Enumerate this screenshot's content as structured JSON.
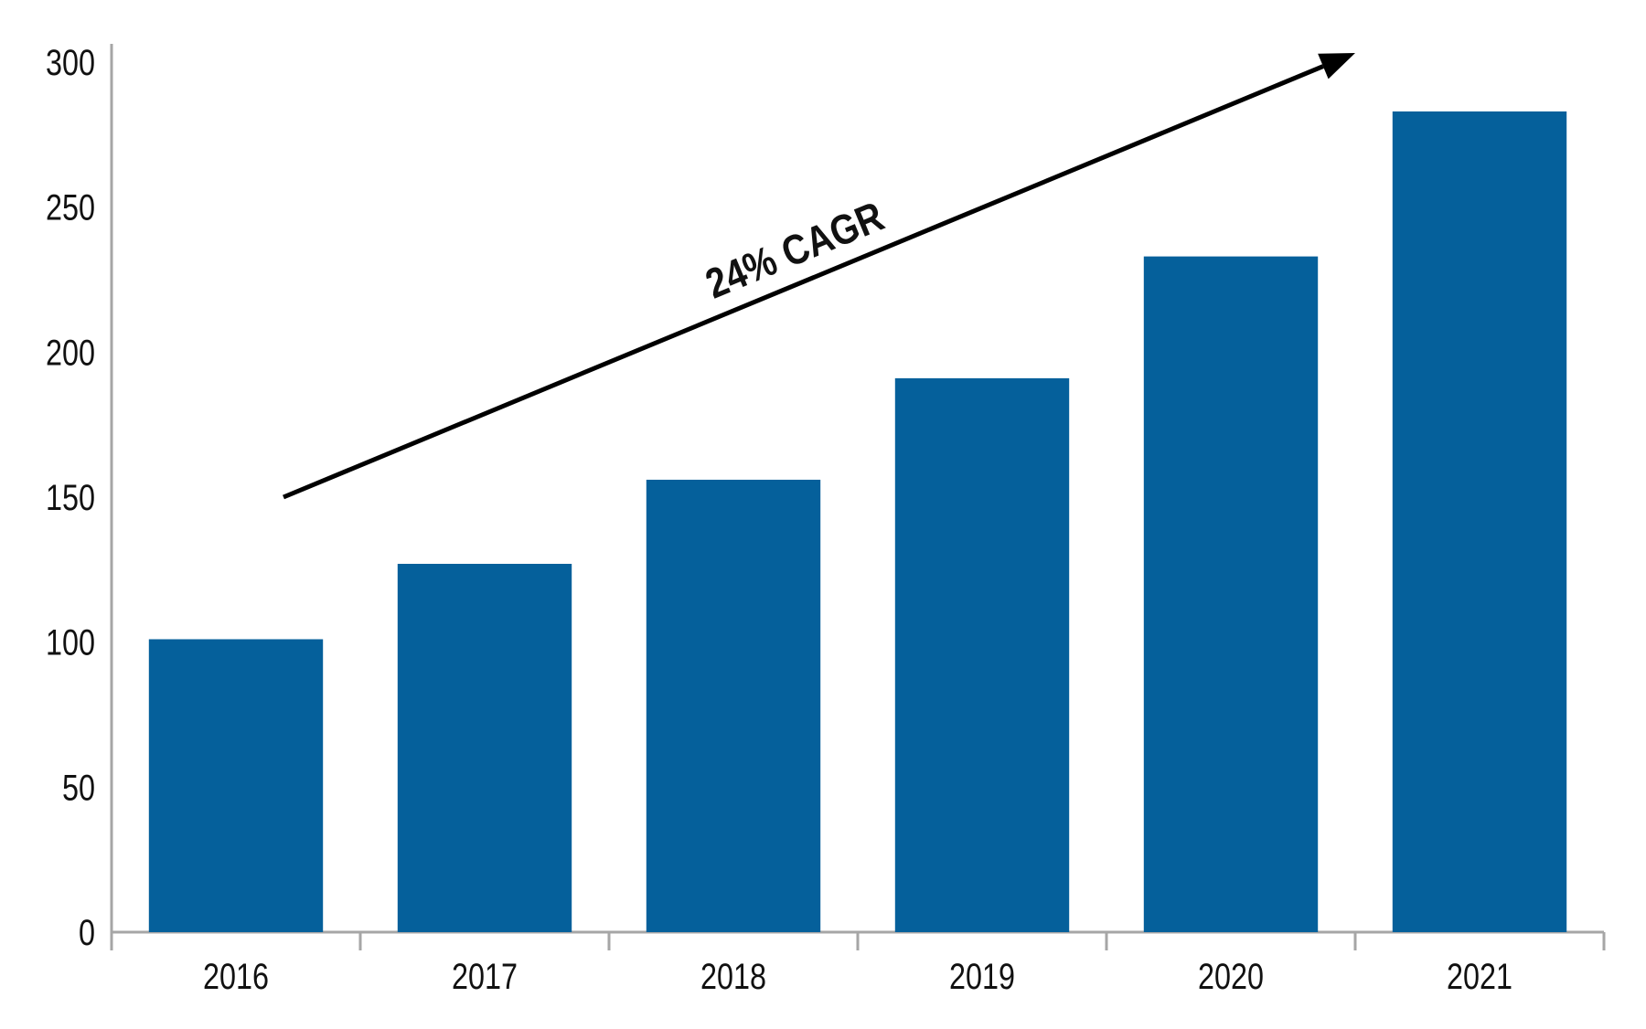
{
  "chart_data": {
    "type": "bar",
    "title": "",
    "categories": [
      "2016",
      "2017",
      "2018",
      "2019",
      "2020",
      "2021"
    ],
    "values": [
      101,
      127,
      156,
      191,
      233,
      283
    ],
    "xlabel": "",
    "ylabel": "",
    "ylim": [
      0,
      300
    ],
    "yticks": [
      0,
      50,
      100,
      150,
      200,
      250,
      300
    ],
    "grid": false,
    "legend": "none",
    "annotation": {
      "label": "24% CAGR"
    },
    "colors": {
      "bar": "#05609B",
      "axis": "#A6A6A6",
      "text": "#111111",
      "arrow": "#000000"
    }
  }
}
